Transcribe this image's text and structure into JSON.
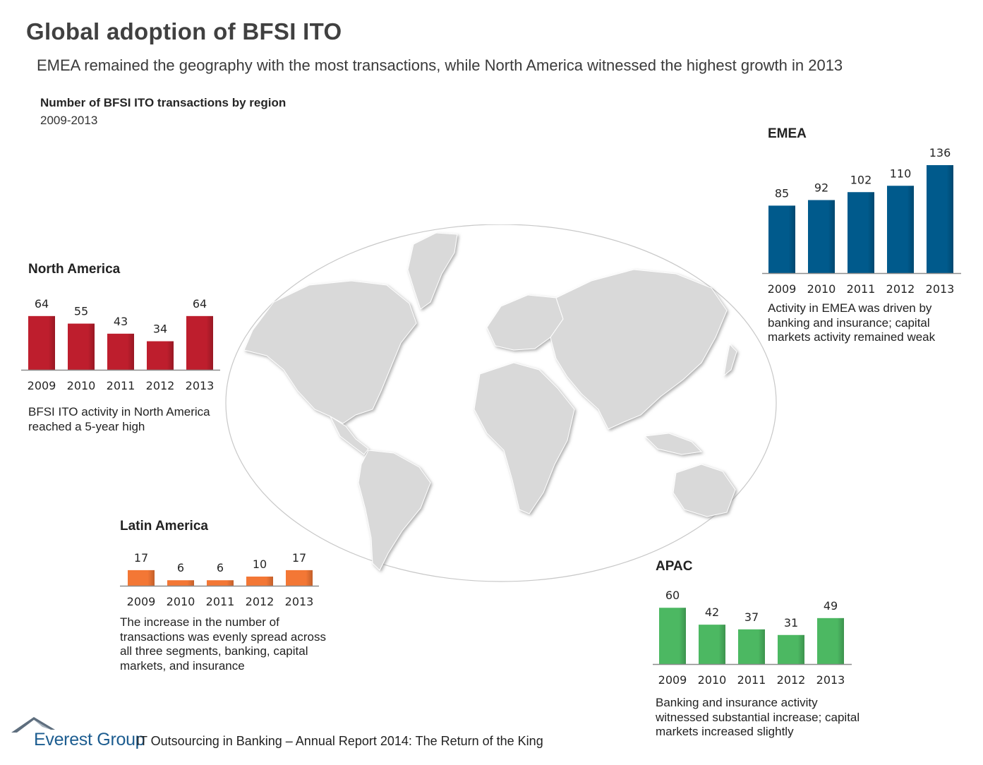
{
  "header": {
    "title": "Global adoption of BFSI ITO",
    "subtitle": "EMEA remained the geography with the most transactions, while North America witnessed the highest growth in 2013",
    "figure_title": "Number of BFSI ITO transactions by region",
    "figure_subtitle": "2009-2013"
  },
  "chart_data": [
    {
      "type": "bar",
      "title": "North America",
      "categories": [
        "2009",
        "2010",
        "2011",
        "2012",
        "2013"
      ],
      "values": [
        64,
        55,
        43,
        34,
        64
      ],
      "color": "#be1e2d",
      "note": "BFSI ITO activity in North America reached a 5-year high"
    },
    {
      "type": "bar",
      "title": "EMEA",
      "categories": [
        "2009",
        "2010",
        "2011",
        "2012",
        "2013"
      ],
      "values": [
        85,
        92,
        102,
        110,
        136
      ],
      "color": "#005a8c",
      "note": "Activity in EMEA was driven by banking and insurance; capital markets activity remained weak"
    },
    {
      "type": "bar",
      "title": "Latin America",
      "categories": [
        "2009",
        "2010",
        "2011",
        "2012",
        "2013"
      ],
      "values": [
        17,
        6,
        6,
        10,
        17
      ],
      "color": "#f37735",
      "note": "The increase in the number of transactions was evenly spread across all three segments, banking, capital markets, and insurance"
    },
    {
      "type": "bar",
      "title": "APAC",
      "categories": [
        "2009",
        "2010",
        "2011",
        "2012",
        "2013"
      ],
      "values": [
        60,
        42,
        37,
        31,
        49
      ],
      "color": "#4cb862",
      "note": "Banking and insurance activity witnessed substantial increase; capital markets increased slightly"
    }
  ],
  "footer": {
    "brand": "Everest Group",
    "report": "IT Outsourcing in Banking – Annual Report 2014: The Return of the King"
  }
}
